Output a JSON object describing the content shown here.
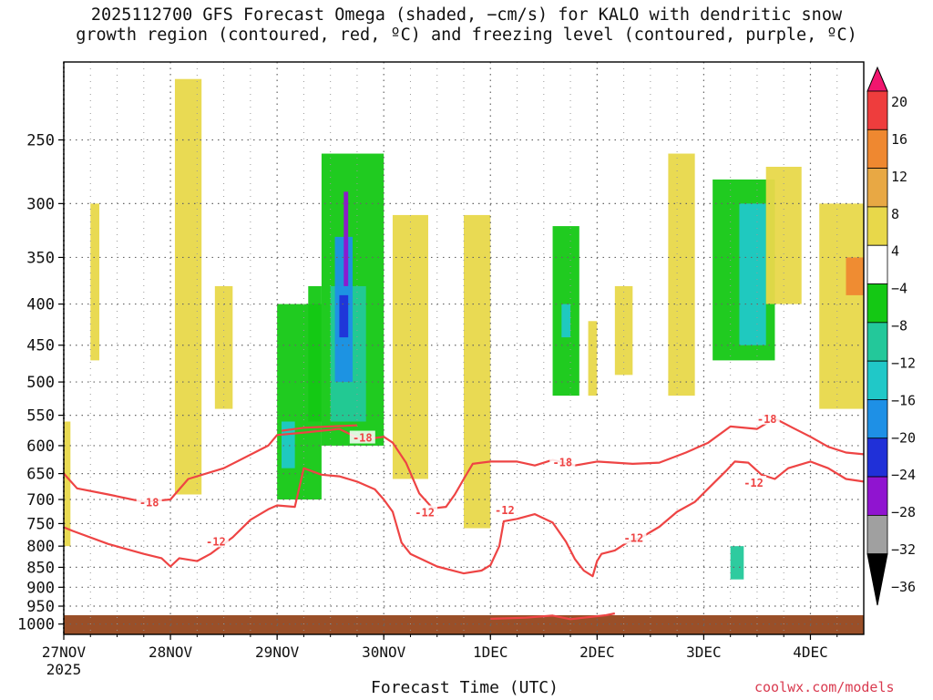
{
  "title": {
    "line1": "2025112700 GFS Forecast Omega (shaded, −cm/s) for KALO with dendritic snow",
    "line2": "growth region (contoured, red, ºC) and freezing level (contoured, purple, ºC)"
  },
  "credit": "coolwx.com/models",
  "chart_data": {
    "type": "heatmap",
    "xlabel": "Forecast Time (UTC)",
    "ylabel": "",
    "x_ticks": [
      {
        "label": "27NOV",
        "sub": "2025",
        "hours": 0
      },
      {
        "label": "28NOV",
        "hours": 24
      },
      {
        "label": "29NOV",
        "hours": 48
      },
      {
        "label": "30NOV",
        "hours": 72
      },
      {
        "label": "1DEC",
        "hours": 96
      },
      {
        "label": "2DEC",
        "hours": 120
      },
      {
        "label": "3DEC",
        "hours": 144
      },
      {
        "label": "4DEC",
        "hours": 168
      }
    ],
    "xlim": [
      0,
      180
    ],
    "y_ticks": [
      250,
      300,
      350,
      400,
      450,
      500,
      550,
      600,
      650,
      700,
      750,
      800,
      850,
      900,
      950,
      1000
    ],
    "ylim": [
      200,
      1030
    ],
    "y_scale": "reverse-log",
    "grid": true,
    "colorbar": {
      "labels": [
        "20",
        "16",
        "12",
        "8",
        "4",
        "−4",
        "−8",
        "−12",
        "−16",
        "−20",
        "−24",
        "−28",
        "−32",
        "−36"
      ],
      "colors": [
        "#f0166e",
        "#ee3d3d",
        "#ef8830",
        "#e8a844",
        "#e8d84a",
        "#ffffff",
        "#14c814",
        "#23c89a",
        "#20c8c8",
        "#1e90e6",
        "#2030d8",
        "#9014d0",
        "#a0a0a0",
        "#000000"
      ]
    },
    "series": [
      {
        "name": "-18",
        "color": "#ee4444",
        "label_at": [
          [
            19,
            706
          ],
          [
            67,
            587
          ],
          [
            112,
            630
          ],
          [
            158,
            556
          ]
        ],
        "points": [
          [
            0,
            650
          ],
          [
            3,
            678
          ],
          [
            10,
            690
          ],
          [
            18,
            705
          ],
          [
            24,
            700
          ],
          [
            28,
            660
          ],
          [
            36,
            640
          ],
          [
            46,
            600
          ],
          [
            48,
            582
          ],
          [
            54,
            578
          ],
          [
            62,
            572
          ],
          [
            67,
            590
          ],
          [
            72,
            585
          ],
          [
            74,
            595
          ],
          [
            77,
            630
          ],
          [
            80,
            688
          ],
          [
            83,
            718
          ],
          [
            86,
            715
          ],
          [
            88,
            690
          ],
          [
            90,
            660
          ],
          [
            92,
            632
          ],
          [
            96,
            628
          ],
          [
            102,
            628
          ],
          [
            106,
            635
          ],
          [
            110,
            625
          ],
          [
            115,
            635
          ],
          [
            120,
            628
          ],
          [
            128,
            632
          ],
          [
            134,
            630
          ],
          [
            140,
            612
          ],
          [
            145,
            595
          ],
          [
            150,
            568
          ],
          [
            156,
            572
          ],
          [
            160,
            555
          ],
          [
            164,
            570
          ],
          [
            168,
            585
          ],
          [
            172,
            602
          ],
          [
            176,
            612
          ],
          [
            180,
            615
          ]
        ]
      },
      {
        "name": "-18b",
        "color": "#ee4444",
        "label_at": [],
        "points": [
          [
            49,
            575
          ],
          [
            54,
            570
          ],
          [
            60,
            568
          ],
          [
            66,
            566
          ]
        ]
      },
      {
        "name": "-12",
        "color": "#ee4444",
        "label_at": [
          [
            34,
            790
          ],
          [
            81,
            727
          ],
          [
            99,
            722
          ],
          [
            128,
            782
          ],
          [
            155,
            668
          ]
        ],
        "points": [
          [
            0,
            758
          ],
          [
            2,
            766
          ],
          [
            10,
            795
          ],
          [
            18,
            818
          ],
          [
            22,
            828
          ],
          [
            24,
            848
          ],
          [
            26,
            828
          ],
          [
            30,
            835
          ],
          [
            33,
            818
          ],
          [
            38,
            780
          ],
          [
            42,
            742
          ],
          [
            46,
            720
          ],
          [
            48,
            712
          ],
          [
            52,
            715
          ],
          [
            54,
            640
          ],
          [
            58,
            652
          ],
          [
            62,
            655
          ],
          [
            66,
            665
          ],
          [
            70,
            680
          ],
          [
            72,
            700
          ],
          [
            74,
            725
          ],
          [
            76,
            792
          ],
          [
            78,
            818
          ],
          [
            84,
            848
          ],
          [
            90,
            865
          ],
          [
            94,
            858
          ],
          [
            96,
            845
          ],
          [
            98,
            800
          ],
          [
            99,
            745
          ],
          [
            102,
            740
          ],
          [
            106,
            730
          ],
          [
            110,
            748
          ],
          [
            113,
            790
          ],
          [
            115,
            830
          ],
          [
            117,
            858
          ],
          [
            119,
            872
          ],
          [
            120,
            835
          ],
          [
            121,
            818
          ],
          [
            124,
            810
          ],
          [
            127,
            790
          ],
          [
            130,
            780
          ],
          [
            134,
            757
          ],
          [
            138,
            725
          ],
          [
            142,
            705
          ],
          [
            146,
            670
          ],
          [
            149,
            645
          ],
          [
            151,
            628
          ],
          [
            154,
            630
          ],
          [
            157,
            652
          ],
          [
            160,
            660
          ],
          [
            163,
            640
          ],
          [
            168,
            628
          ],
          [
            172,
            640
          ],
          [
            176,
            660
          ],
          [
            180,
            665
          ]
        ]
      },
      {
        "name": "-12 low",
        "color": "#ee4444",
        "label_at": [],
        "points": [
          [
            96,
            985
          ],
          [
            104,
            982
          ],
          [
            110,
            976
          ],
          [
            114,
            986
          ],
          [
            122,
            975
          ],
          [
            124,
            970
          ]
        ]
      }
    ],
    "omega_patches": [
      {
        "value": 4,
        "t0": 25,
        "t1": 31,
        "p0": 210,
        "p1": 690
      },
      {
        "value": 4,
        "t0": 34,
        "t1": 38,
        "p0": 380,
        "p1": 540
      },
      {
        "value": 4,
        "t0": 6,
        "t1": 8,
        "p0": 300,
        "p1": 470
      },
      {
        "value": 4,
        "t0": 0,
        "t1": 1.5,
        "p0": 560,
        "p1": 800
      },
      {
        "value": -4,
        "t0": 48,
        "t1": 58,
        "p0": 400,
        "p1": 700
      },
      {
        "value": -4,
        "t0": 55,
        "t1": 58,
        "p0": 380,
        "p1": 560
      },
      {
        "value": -4,
        "t0": 58,
        "t1": 72,
        "p0": 260,
        "p1": 600
      },
      {
        "value": -8,
        "t0": 60,
        "t1": 68,
        "p0": 380,
        "p1": 560
      },
      {
        "value": -16,
        "t0": 61,
        "t1": 65,
        "p0": 330,
        "p1": 500
      },
      {
        "value": -24,
        "t0": 62,
        "t1": 64,
        "p0": 390,
        "p1": 440
      },
      {
        "value": -28,
        "t0": 63,
        "t1": 64,
        "p0": 290,
        "p1": 380
      },
      {
        "value": -12,
        "t0": 49,
        "t1": 52,
        "p0": 560,
        "p1": 640
      },
      {
        "value": 4,
        "t0": 74,
        "t1": 82,
        "p0": 310,
        "p1": 660
      },
      {
        "value": 4,
        "t0": 90,
        "t1": 96,
        "p0": 310,
        "p1": 760
      },
      {
        "value": -4,
        "t0": 110,
        "t1": 116,
        "p0": 320,
        "p1": 520
      },
      {
        "value": -12,
        "t0": 112,
        "t1": 114,
        "p0": 400,
        "p1": 440
      },
      {
        "value": 4,
        "t0": 124,
        "t1": 128,
        "p0": 380,
        "p1": 490
      },
      {
        "value": 4,
        "t0": 136,
        "t1": 142,
        "p0": 260,
        "p1": 520
      },
      {
        "value": -4,
        "t0": 146,
        "t1": 160,
        "p0": 280,
        "p1": 470
      },
      {
        "value": -12,
        "t0": 152,
        "t1": 158,
        "p0": 300,
        "p1": 450
      },
      {
        "value": 4,
        "t0": 158,
        "t1": 166,
        "p0": 270,
        "p1": 400
      },
      {
        "value": 4,
        "t0": 170,
        "t1": 180,
        "p0": 300,
        "p1": 540
      },
      {
        "value": 12,
        "t0": 176,
        "t1": 180,
        "p0": 350,
        "p1": 390
      },
      {
        "value": -8,
        "t0": 150,
        "t1": 153,
        "p0": 800,
        "p1": 880
      },
      {
        "value": 4,
        "t0": 118,
        "t1": 120,
        "p0": 420,
        "p1": 520
      }
    ]
  }
}
